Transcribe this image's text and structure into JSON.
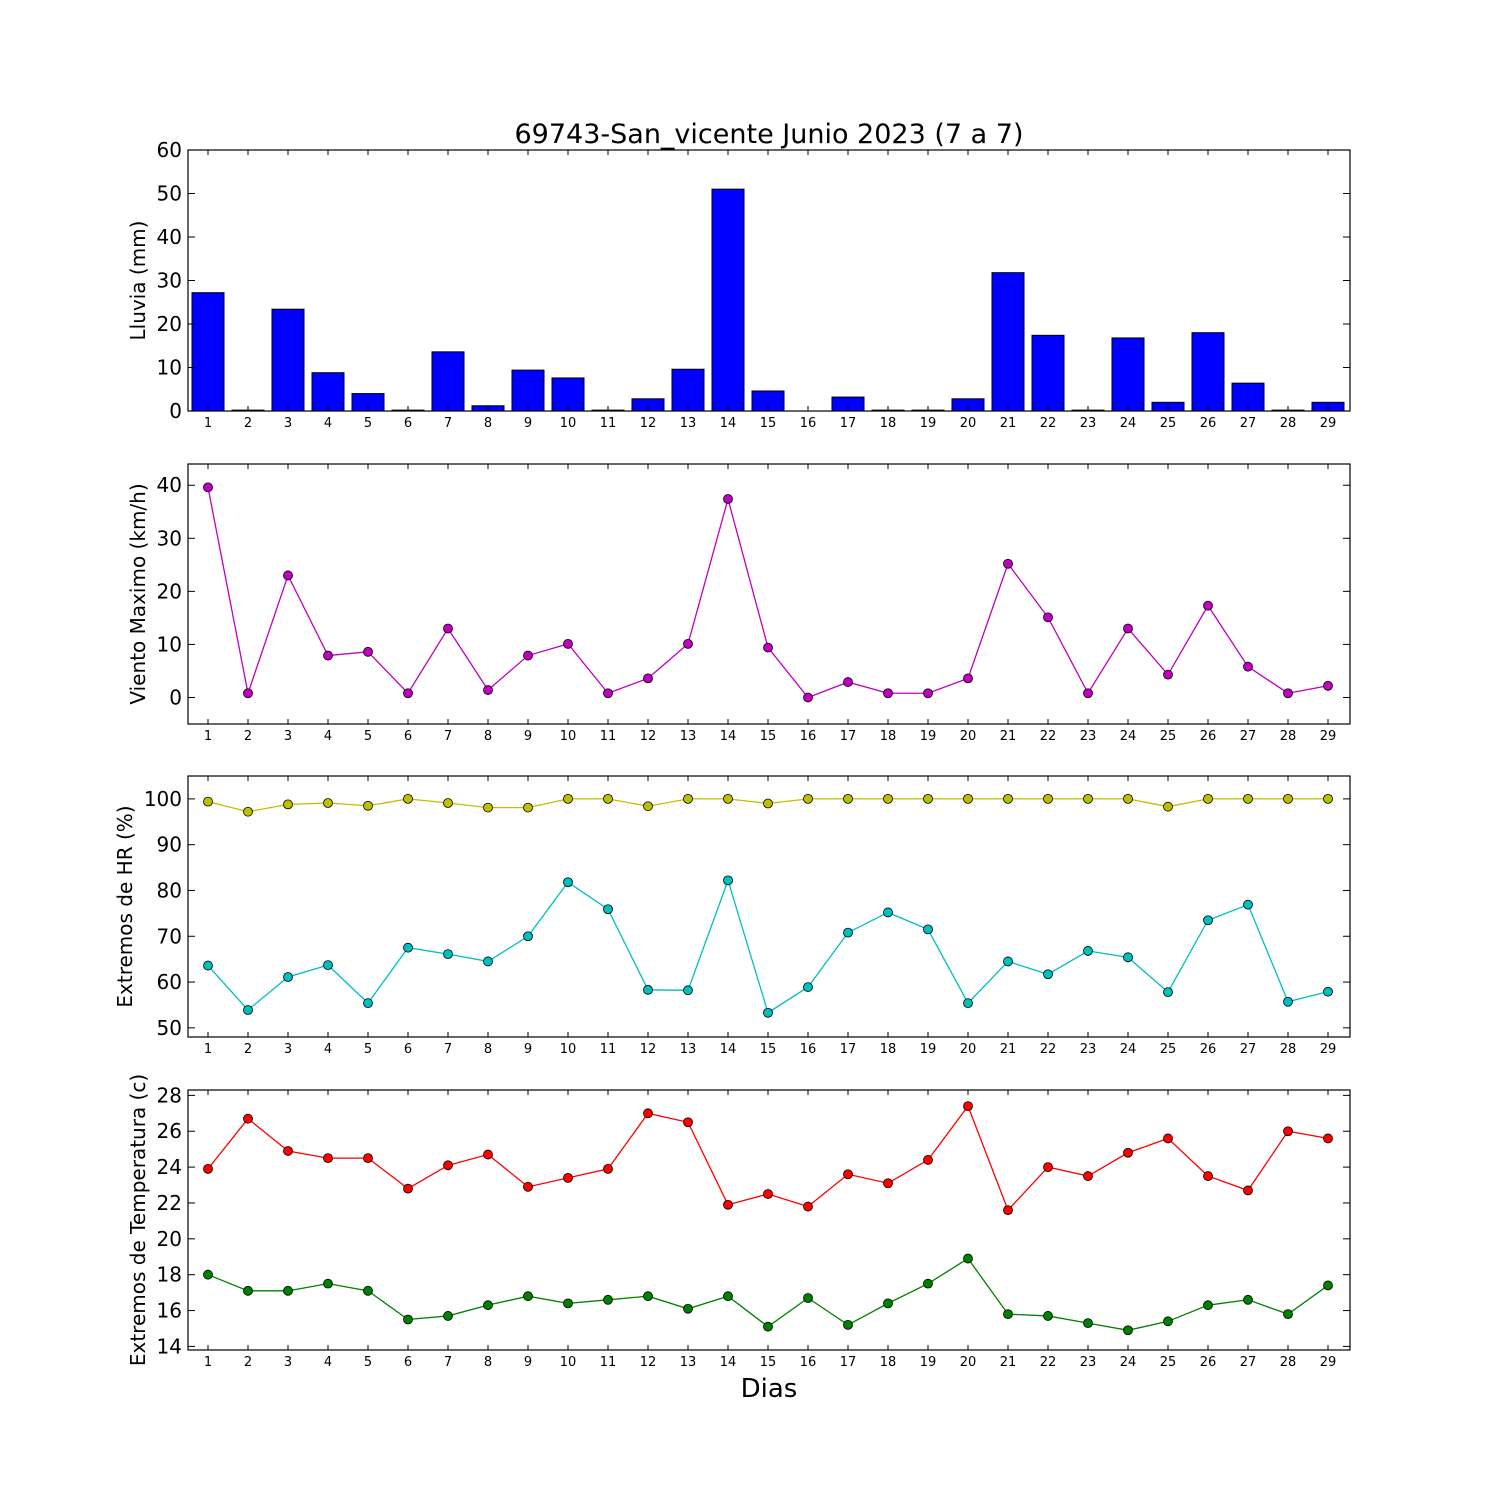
{
  "figure": {
    "title": "69743-San_vicente Junio 2023  (7 a 7)",
    "xlabel": "Dias"
  },
  "chart_data": [
    {
      "type": "bar",
      "ylabel": "Lluvia (mm)",
      "ylim": [
        0,
        60
      ],
      "yticks": [
        0,
        10,
        20,
        30,
        40,
        50,
        60
      ],
      "grid": false,
      "categories": [
        "1",
        "2",
        "3",
        "4",
        "5",
        "6",
        "7",
        "8",
        "9",
        "10",
        "11",
        "12",
        "13",
        "14",
        "15",
        "16",
        "17",
        "18",
        "19",
        "20",
        "21",
        "22",
        "23",
        "24",
        "25",
        "26",
        "27",
        "28",
        "29"
      ],
      "color": "#0000ff",
      "values": [
        27.2,
        0.2,
        23.4,
        8.8,
        4.0,
        0.2,
        13.6,
        1.2,
        9.4,
        7.6,
        0.2,
        2.8,
        9.6,
        51.0,
        4.6,
        0.0,
        3.2,
        0.2,
        0.2,
        2.8,
        31.8,
        17.4,
        0.2,
        16.8,
        2.0,
        18.0,
        6.4,
        0.2,
        2.0
      ]
    },
    {
      "type": "line",
      "ylabel": "Viento Maximo (km/h)",
      "ylim": [
        -5,
        44
      ],
      "yticks": [
        0,
        10,
        20,
        30,
        40
      ],
      "grid": false,
      "categories": [
        "1",
        "2",
        "3",
        "4",
        "5",
        "6",
        "7",
        "8",
        "9",
        "10",
        "11",
        "12",
        "13",
        "14",
        "15",
        "16",
        "17",
        "18",
        "19",
        "20",
        "21",
        "22",
        "23",
        "24",
        "25",
        "26",
        "27",
        "28",
        "29"
      ],
      "series": [
        {
          "color": "#bf00bf",
          "values": [
            39.6,
            0.8,
            23.0,
            7.9,
            8.6,
            0.8,
            13.0,
            1.4,
            7.9,
            10.1,
            0.8,
            3.6,
            10.1,
            37.4,
            9.4,
            0.0,
            2.9,
            0.8,
            0.8,
            3.6,
            25.2,
            15.1,
            0.8,
            13.0,
            4.3,
            17.3,
            5.8,
            0.8,
            2.2
          ]
        }
      ]
    },
    {
      "type": "line",
      "ylabel": "Extremos de HR (%)",
      "ylim": [
        48,
        105
      ],
      "yticks": [
        50,
        60,
        70,
        80,
        90,
        100
      ],
      "grid": false,
      "categories": [
        "1",
        "2",
        "3",
        "4",
        "5",
        "6",
        "7",
        "8",
        "9",
        "10",
        "11",
        "12",
        "13",
        "14",
        "15",
        "16",
        "17",
        "18",
        "19",
        "20",
        "21",
        "22",
        "23",
        "24",
        "25",
        "26",
        "27",
        "28",
        "29"
      ],
      "series": [
        {
          "color": "#bfbf00",
          "values": [
            99.4,
            97.2,
            98.8,
            99.1,
            98.5,
            100,
            99.1,
            98.1,
            98.1,
            100,
            100,
            98.4,
            100,
            100,
            99.0,
            100,
            100,
            100,
            100,
            100,
            100,
            100,
            100,
            100,
            98.3,
            100,
            100,
            100,
            100
          ]
        },
        {
          "color": "#00bfbf",
          "values": [
            63.6,
            53.9,
            61.1,
            63.7,
            55.4,
            67.5,
            66.1,
            64.5,
            70.0,
            81.8,
            75.9,
            58.3,
            58.2,
            82.2,
            53.3,
            58.9,
            70.8,
            75.2,
            71.5,
            55.4,
            64.5,
            61.7,
            66.8,
            65.4,
            57.8,
            73.5,
            76.9,
            55.7,
            57.9
          ]
        }
      ]
    },
    {
      "type": "line",
      "ylabel": "Extremos de Temperatura (c)",
      "ylim": [
        13.8,
        28.3
      ],
      "yticks": [
        14,
        16,
        18,
        20,
        22,
        24,
        26,
        28
      ],
      "grid": false,
      "categories": [
        "1",
        "2",
        "3",
        "4",
        "5",
        "6",
        "7",
        "8",
        "9",
        "10",
        "11",
        "12",
        "13",
        "14",
        "15",
        "16",
        "17",
        "18",
        "19",
        "20",
        "21",
        "22",
        "23",
        "24",
        "25",
        "26",
        "27",
        "28",
        "29"
      ],
      "series": [
        {
          "color": "#ff0000",
          "values": [
            23.9,
            26.7,
            24.9,
            24.5,
            24.5,
            22.8,
            24.1,
            24.7,
            22.9,
            23.4,
            23.9,
            27.0,
            26.5,
            21.9,
            22.5,
            21.8,
            23.6,
            23.1,
            24.4,
            27.4,
            21.6,
            24.0,
            23.5,
            24.8,
            25.6,
            23.5,
            22.7,
            26.0,
            25.6
          ]
        },
        {
          "color": "#008000",
          "values": [
            18.0,
            17.1,
            17.1,
            17.5,
            17.1,
            15.5,
            15.7,
            16.3,
            16.8,
            16.4,
            16.6,
            16.8,
            16.1,
            16.8,
            15.1,
            16.7,
            15.2,
            16.4,
            17.5,
            18.9,
            15.8,
            15.7,
            15.3,
            14.9,
            15.4,
            16.3,
            16.6,
            15.8,
            17.4
          ]
        }
      ]
    }
  ]
}
